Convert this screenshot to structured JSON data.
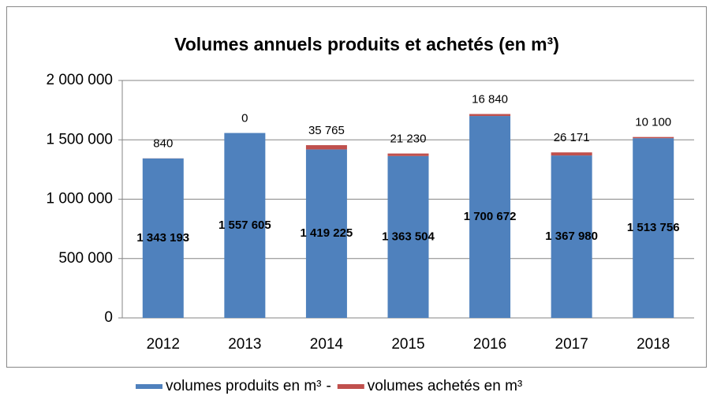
{
  "chart_data": {
    "type": "stacked_bar",
    "title": "Volumes annuels produits et achetés (en m³)",
    "categories": [
      "2012",
      "2013",
      "2014",
      "2015",
      "2016",
      "2017",
      "2018"
    ],
    "series": [
      {
        "name": "volumes produits en m³",
        "color": "#4f81bd",
        "values": [
          1343193,
          1557605,
          1419225,
          1363504,
          1700672,
          1367980,
          1513756
        ],
        "value_labels": [
          "1 343 193",
          "1 557 605",
          "1 419 225",
          "1 363 504",
          "1 700 672",
          "1 367 980",
          "1 513 756"
        ]
      },
      {
        "name": "volumes achetés en m³",
        "color": "#c0504d",
        "values": [
          840,
          0,
          35765,
          21230,
          16840,
          26171,
          10100
        ],
        "value_labels": [
          "840",
          "0",
          "35 765",
          "21 230",
          "16 840",
          "26 171",
          "10 100"
        ]
      }
    ],
    "legend_separator": "-",
    "ylim": [
      0,
      2000000
    ],
    "yticks": [
      0,
      {
        "value": 500000,
        "label": "500 000"
      },
      {
        "value": 1000000,
        "label": "1 000 000"
      },
      {
        "value": 1500000,
        "label": "1 500 000"
      },
      {
        "value": 2000000,
        "label": "2 000 000"
      }
    ],
    "grid": true
  }
}
